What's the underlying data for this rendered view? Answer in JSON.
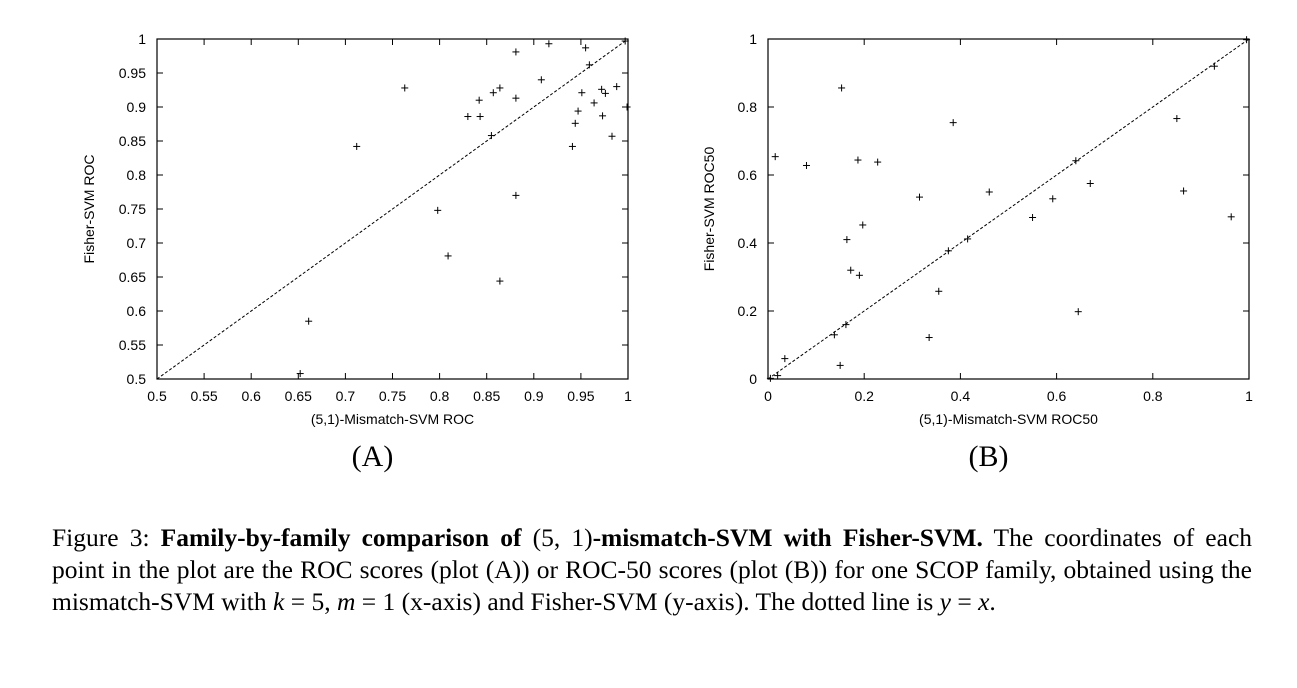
{
  "chart_data": [
    {
      "type": "scatter",
      "panel_label": "(A)",
      "xlabel": "(5,1)-Mismatch-SVM ROC",
      "ylabel": "Fisher-SVM ROC",
      "xlim": [
        0.5,
        1
      ],
      "ylim": [
        0.5,
        1
      ],
      "xticks": [
        "0.5",
        "0.55",
        "0.6",
        "0.65",
        "0.7",
        "0.75",
        "0.8",
        "0.85",
        "0.9",
        "0.95",
        "1"
      ],
      "yticks": [
        "0.5",
        "0.55",
        "0.6",
        "0.65",
        "0.7",
        "0.75",
        "0.8",
        "0.85",
        "0.9",
        "0.95",
        "1"
      ],
      "reference_line": "y = x",
      "grid": false,
      "marker": "+",
      "points": [
        {
          "x": 0.652,
          "y": 0.508
        },
        {
          "x": 0.661,
          "y": 0.585
        },
        {
          "x": 0.712,
          "y": 0.842
        },
        {
          "x": 0.763,
          "y": 0.928
        },
        {
          "x": 0.798,
          "y": 0.748
        },
        {
          "x": 0.809,
          "y": 0.681
        },
        {
          "x": 0.83,
          "y": 0.886
        },
        {
          "x": 0.842,
          "y": 0.91
        },
        {
          "x": 0.843,
          "y": 0.886
        },
        {
          "x": 0.855,
          "y": 0.858
        },
        {
          "x": 0.857,
          "y": 0.921
        },
        {
          "x": 0.864,
          "y": 0.928
        },
        {
          "x": 0.864,
          "y": 0.644
        },
        {
          "x": 0.881,
          "y": 0.981
        },
        {
          "x": 0.881,
          "y": 0.913
        },
        {
          "x": 0.881,
          "y": 0.77
        },
        {
          "x": 0.908,
          "y": 0.94
        },
        {
          "x": 0.916,
          "y": 0.993
        },
        {
          "x": 0.941,
          "y": 0.842
        },
        {
          "x": 0.944,
          "y": 0.876
        },
        {
          "x": 0.947,
          "y": 0.894
        },
        {
          "x": 0.951,
          "y": 0.921
        },
        {
          "x": 0.955,
          "y": 0.987
        },
        {
          "x": 0.959,
          "y": 0.962
        },
        {
          "x": 0.964,
          "y": 0.906
        },
        {
          "x": 0.972,
          "y": 0.926
        },
        {
          "x": 0.973,
          "y": 0.887
        },
        {
          "x": 0.976,
          "y": 0.92
        },
        {
          "x": 0.983,
          "y": 0.857
        },
        {
          "x": 0.988,
          "y": 0.93
        },
        {
          "x": 0.997,
          "y": 0.997
        },
        {
          "x": 0.999,
          "y": 0.9
        }
      ]
    },
    {
      "type": "scatter",
      "panel_label": "(B)",
      "xlabel": "(5,1)-Mismatch-SVM ROC50",
      "ylabel": "Fisher-SVM ROC50",
      "xlim": [
        0,
        1
      ],
      "ylim": [
        0,
        1
      ],
      "xticks": [
        "0",
        "0.2",
        "0.4",
        "0.6",
        "0.8",
        "1"
      ],
      "yticks": [
        "0",
        "0.2",
        "0.4",
        "0.6",
        "0.8",
        "1"
      ],
      "reference_line": "y = x",
      "grid": false,
      "marker": "+",
      "points": [
        {
          "x": 0.005,
          "y": 0.002
        },
        {
          "x": 0.015,
          "y": 0.654
        },
        {
          "x": 0.02,
          "y": 0.01
        },
        {
          "x": 0.035,
          "y": 0.06
        },
        {
          "x": 0.08,
          "y": 0.628
        },
        {
          "x": 0.138,
          "y": 0.13
        },
        {
          "x": 0.15,
          "y": 0.04
        },
        {
          "x": 0.153,
          "y": 0.856
        },
        {
          "x": 0.162,
          "y": 0.16
        },
        {
          "x": 0.164,
          "y": 0.41
        },
        {
          "x": 0.172,
          "y": 0.32
        },
        {
          "x": 0.187,
          "y": 0.644
        },
        {
          "x": 0.19,
          "y": 0.305
        },
        {
          "x": 0.197,
          "y": 0.453
        },
        {
          "x": 0.228,
          "y": 0.638
        },
        {
          "x": 0.315,
          "y": 0.535
        },
        {
          "x": 0.335,
          "y": 0.122
        },
        {
          "x": 0.355,
          "y": 0.258
        },
        {
          "x": 0.375,
          "y": 0.377
        },
        {
          "x": 0.385,
          "y": 0.754
        },
        {
          "x": 0.415,
          "y": 0.412
        },
        {
          "x": 0.46,
          "y": 0.55
        },
        {
          "x": 0.55,
          "y": 0.475
        },
        {
          "x": 0.592,
          "y": 0.53
        },
        {
          "x": 0.64,
          "y": 0.642
        },
        {
          "x": 0.645,
          "y": 0.198
        },
        {
          "x": 0.67,
          "y": 0.575
        },
        {
          "x": 0.85,
          "y": 0.766
        },
        {
          "x": 0.864,
          "y": 0.553
        },
        {
          "x": 0.928,
          "y": 0.92
        },
        {
          "x": 0.963,
          "y": 0.477
        },
        {
          "x": 0.995,
          "y": 0.998
        }
      ]
    }
  ],
  "caption": {
    "label": "Figure 3:",
    "bold_prefix": "Family-by-family comparison of",
    "math_k": "(5, 1)",
    "bold_suffix": "-mismatch-SVM with Fisher-SVM.",
    "text_1": " The coordinates of each point in the plot are the ROC scores (plot (A)) or ROC-50 scores (plot (B)) for one SCOP family, obtained using the mismatch-SVM with ",
    "var_k": "k",
    "eq_k": " = 5, ",
    "var_m": "m",
    "eq_m": " = 1",
    "text_2": " (x-axis) and Fisher-SVM (y-axis). The dotted line is ",
    "var_y": "y",
    "eq": " = ",
    "var_x": "x",
    "text_end": "."
  }
}
